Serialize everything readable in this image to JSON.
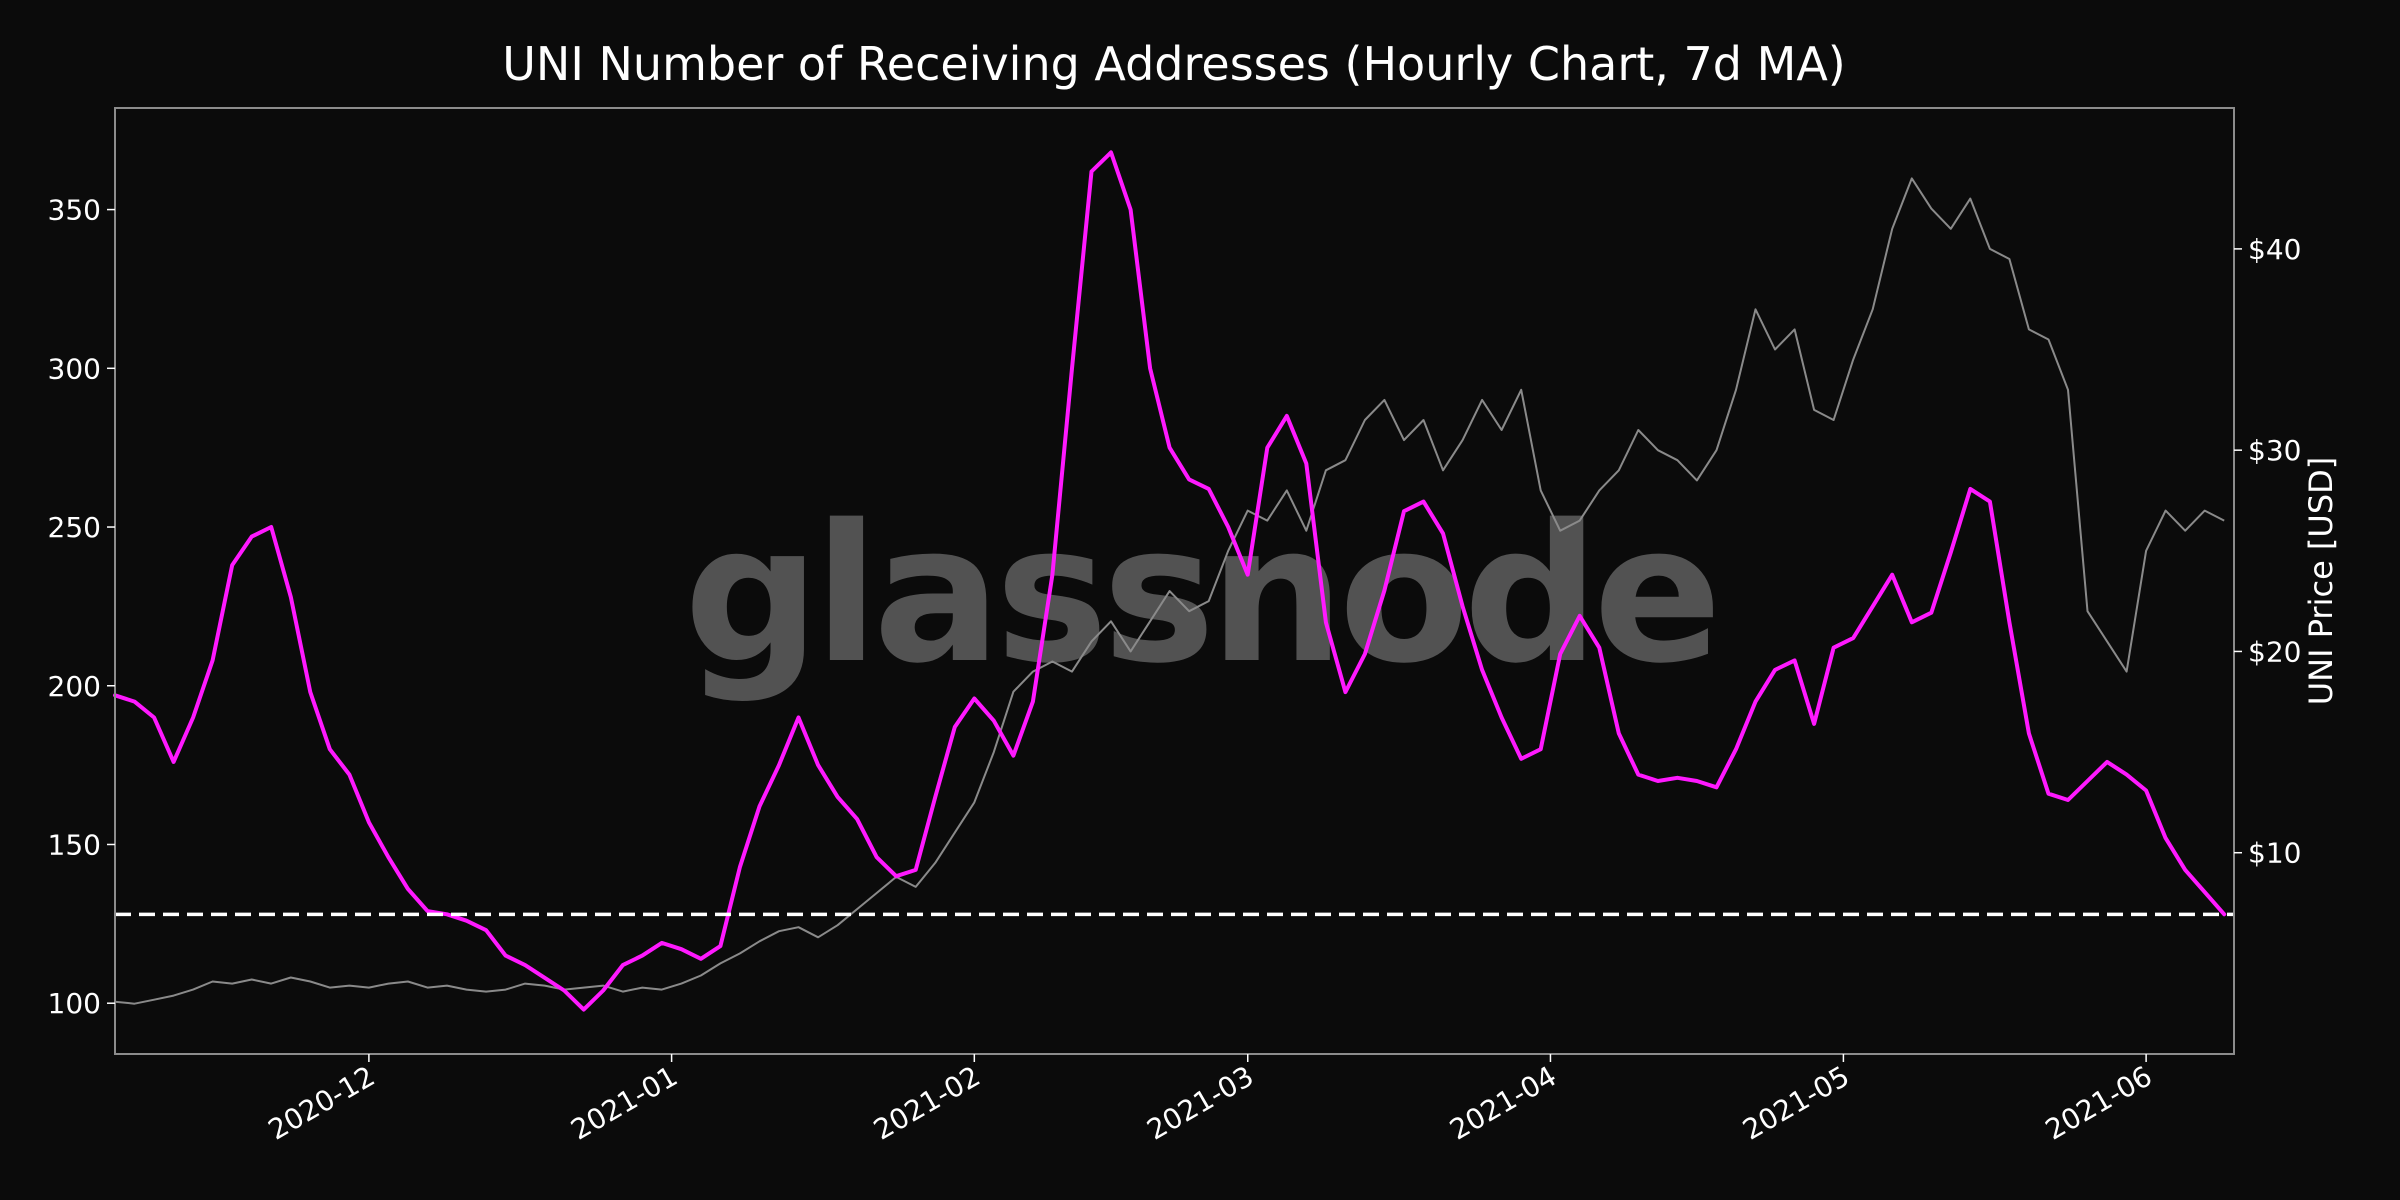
{
  "chart_data": {
    "type": "line",
    "title": "UNI Number of Receiving Addresses (Hourly Chart, 7d MA)",
    "watermark": "glassnode",
    "xlabel": "",
    "ylabel": "",
    "y2label": "UNI Price [USD]",
    "xlim": [
      "2020-11-05",
      "2021-06-10"
    ],
    "ylim": [
      84,
      382
    ],
    "y2lim": [
      0,
      47
    ],
    "grid": false,
    "legend": "none",
    "x_ticks": [
      "2020-12",
      "2021-01",
      "2021-02",
      "2021-03",
      "2021-04",
      "2021-05",
      "2021-06"
    ],
    "y_ticks": [
      "100",
      "150",
      "200",
      "250",
      "300",
      "350"
    ],
    "y2_ticks": [
      "$10",
      "$20",
      "$30",
      "$40"
    ],
    "y2_tick_values": [
      10,
      20,
      30,
      40
    ],
    "colors": {
      "background": "#0b0b0b",
      "addresses": "#ff19ff",
      "price": "#8a8a8a",
      "reference": "#ffffff",
      "frame": "#8c8c8c"
    },
    "reference_line": {
      "y": 128,
      "style": "dashed"
    },
    "series": [
      {
        "axis": "left",
        "x": [
          "2020-11-05",
          "2020-11-07",
          "2020-11-09",
          "2020-11-11",
          "2020-11-13",
          "2020-11-15",
          "2020-11-17",
          "2020-11-19",
          "2020-11-21",
          "2020-11-23",
          "2020-11-25",
          "2020-11-27",
          "2020-11-29",
          "2020-12-01",
          "2020-12-03",
          "2020-12-05",
          "2020-12-07",
          "2020-12-09",
          "2020-12-11",
          "2020-12-13",
          "2020-12-15",
          "2020-12-17",
          "2020-12-19",
          "2020-12-21",
          "2020-12-23",
          "2020-12-25",
          "2020-12-27",
          "2020-12-29",
          "2020-12-31",
          "2021-01-02",
          "2021-01-04",
          "2021-01-06",
          "2021-01-08",
          "2021-01-10",
          "2021-01-12",
          "2021-01-14",
          "2021-01-16",
          "2021-01-18",
          "2021-01-20",
          "2021-01-22",
          "2021-01-24",
          "2021-01-26",
          "2021-01-28",
          "2021-01-30",
          "2021-02-01",
          "2021-02-03",
          "2021-02-05",
          "2021-02-07",
          "2021-02-09",
          "2021-02-11",
          "2021-02-13",
          "2021-02-15",
          "2021-02-17",
          "2021-02-19",
          "2021-02-21",
          "2021-02-23",
          "2021-02-25",
          "2021-02-27",
          "2021-03-01",
          "2021-03-03",
          "2021-03-05",
          "2021-03-07",
          "2021-03-09",
          "2021-03-11",
          "2021-03-13",
          "2021-03-15",
          "2021-03-17",
          "2021-03-19",
          "2021-03-21",
          "2021-03-23",
          "2021-03-25",
          "2021-03-27",
          "2021-03-29",
          "2021-03-31",
          "2021-04-02",
          "2021-04-04",
          "2021-04-06",
          "2021-04-08",
          "2021-04-10",
          "2021-04-12",
          "2021-04-14",
          "2021-04-16",
          "2021-04-18",
          "2021-04-20",
          "2021-04-22",
          "2021-04-24",
          "2021-04-26",
          "2021-04-28",
          "2021-04-30",
          "2021-05-02",
          "2021-05-04",
          "2021-05-06",
          "2021-05-08",
          "2021-05-10",
          "2021-05-12",
          "2021-05-14",
          "2021-05-16",
          "2021-05-18",
          "2021-05-20",
          "2021-05-22",
          "2021-05-24",
          "2021-05-26",
          "2021-05-28",
          "2021-05-30",
          "2021-06-01",
          "2021-06-03",
          "2021-06-05",
          "2021-06-07",
          "2021-06-09"
        ],
        "values": [
          197,
          195,
          190,
          176,
          190,
          208,
          238,
          247,
          250,
          228,
          198,
          180,
          172,
          157,
          146,
          136,
          129,
          128,
          126,
          123,
          115,
          112,
          108,
          104,
          98,
          104,
          112,
          115,
          119,
          117,
          114,
          118,
          143,
          162,
          175,
          190,
          175,
          165,
          158,
          146,
          140,
          142,
          165,
          187,
          196,
          189,
          178,
          195,
          235,
          300,
          362,
          368,
          350,
          300,
          275,
          265,
          262,
          250,
          235,
          275,
          285,
          270,
          220,
          198,
          210,
          230,
          255,
          258,
          248,
          225,
          205,
          190,
          177,
          180,
          210,
          222,
          212,
          185,
          172,
          170,
          171,
          170,
          168,
          180,
          195,
          205,
          208,
          188,
          212,
          215,
          225,
          235,
          220,
          223,
          242,
          262,
          258,
          220,
          185,
          166,
          164,
          170,
          176,
          172,
          167,
          152,
          142,
          135,
          128
        ]
      },
      {
        "axis": "right",
        "x": [
          "2020-11-05",
          "2020-11-07",
          "2020-11-09",
          "2020-11-11",
          "2020-11-13",
          "2020-11-15",
          "2020-11-17",
          "2020-11-19",
          "2020-11-21",
          "2020-11-23",
          "2020-11-25",
          "2020-11-27",
          "2020-11-29",
          "2020-12-01",
          "2020-12-03",
          "2020-12-05",
          "2020-12-07",
          "2020-12-09",
          "2020-12-11",
          "2020-12-13",
          "2020-12-15",
          "2020-12-17",
          "2020-12-19",
          "2020-12-21",
          "2020-12-23",
          "2020-12-25",
          "2020-12-27",
          "2020-12-29",
          "2020-12-31",
          "2021-01-02",
          "2021-01-04",
          "2021-01-06",
          "2021-01-08",
          "2021-01-10",
          "2021-01-12",
          "2021-01-14",
          "2021-01-16",
          "2021-01-18",
          "2021-01-20",
          "2021-01-22",
          "2021-01-24",
          "2021-01-26",
          "2021-01-28",
          "2021-01-30",
          "2021-02-01",
          "2021-02-03",
          "2021-02-05",
          "2021-02-07",
          "2021-02-09",
          "2021-02-11",
          "2021-02-13",
          "2021-02-15",
          "2021-02-17",
          "2021-02-19",
          "2021-02-21",
          "2021-02-23",
          "2021-02-25",
          "2021-02-27",
          "2021-03-01",
          "2021-03-03",
          "2021-03-05",
          "2021-03-07",
          "2021-03-09",
          "2021-03-11",
          "2021-03-13",
          "2021-03-15",
          "2021-03-17",
          "2021-03-19",
          "2021-03-21",
          "2021-03-23",
          "2021-03-25",
          "2021-03-27",
          "2021-03-29",
          "2021-03-31",
          "2021-04-02",
          "2021-04-04",
          "2021-04-06",
          "2021-04-08",
          "2021-04-10",
          "2021-04-12",
          "2021-04-14",
          "2021-04-16",
          "2021-04-18",
          "2021-04-20",
          "2021-04-22",
          "2021-04-24",
          "2021-04-26",
          "2021-04-28",
          "2021-04-30",
          "2021-05-02",
          "2021-05-04",
          "2021-05-06",
          "2021-05-08",
          "2021-05-10",
          "2021-05-12",
          "2021-05-14",
          "2021-05-16",
          "2021-05-18",
          "2021-05-20",
          "2021-05-22",
          "2021-05-24",
          "2021-05-26",
          "2021-05-28",
          "2021-05-30",
          "2021-06-01",
          "2021-06-03",
          "2021-06-05",
          "2021-06-07",
          "2021-06-09"
        ],
        "values": [
          2.6,
          2.5,
          2.7,
          2.9,
          3.2,
          3.6,
          3.5,
          3.7,
          3.5,
          3.8,
          3.6,
          3.3,
          3.4,
          3.3,
          3.5,
          3.6,
          3.3,
          3.4,
          3.2,
          3.1,
          3.2,
          3.5,
          3.4,
          3.2,
          3.3,
          3.4,
          3.1,
          3.3,
          3.2,
          3.5,
          3.9,
          4.5,
          5.0,
          5.6,
          6.1,
          6.3,
          5.8,
          6.4,
          7.2,
          8.0,
          8.8,
          8.3,
          9.5,
          11.0,
          12.5,
          15.0,
          18.0,
          19.0,
          19.5,
          19.0,
          20.5,
          21.5,
          20.0,
          21.5,
          23.0,
          22.0,
          22.5,
          25.0,
          27.0,
          26.5,
          28.0,
          26.0,
          29.0,
          29.5,
          31.5,
          32.5,
          30.5,
          31.5,
          29.0,
          30.5,
          32.5,
          31.0,
          33.0,
          28.0,
          26.0,
          26.5,
          28.0,
          29.0,
          31.0,
          30.0,
          29.5,
          28.5,
          30.0,
          33.0,
          37.0,
          35.0,
          36.0,
          32.0,
          31.5,
          34.5,
          37.0,
          41.0,
          43.5,
          42.0,
          41.0,
          42.5,
          40.0,
          39.5,
          36.0,
          35.5,
          33.0,
          22.0,
          20.5,
          19.0,
          25.0,
          27.0,
          26.0,
          27.0,
          26.5
        ]
      }
    ]
  }
}
